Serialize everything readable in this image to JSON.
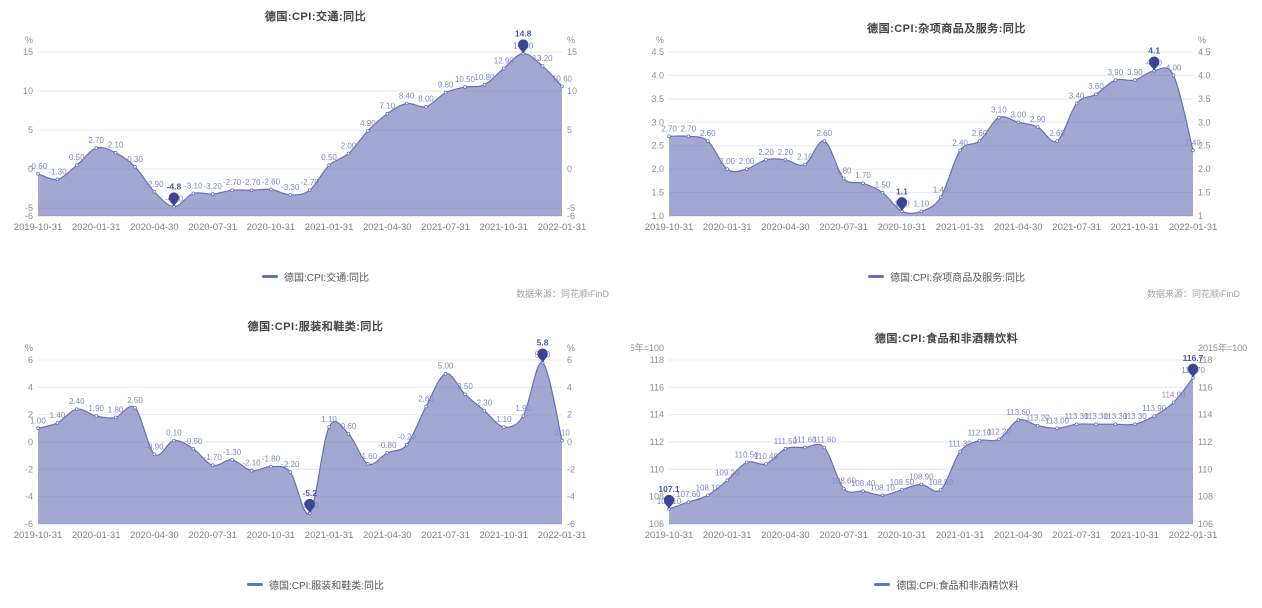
{
  "page": {
    "source_note": "数据来源：同花顺iFinD",
    "background": "#ffffff"
  },
  "colors": {
    "line": "#6672b8",
    "fill": "rgba(105,114,182,0.62)",
    "label": "#7e88c7",
    "pin": "#3b4596",
    "axis_text": "#8f8f8f",
    "grid": "#e7e7e7"
  },
  "chart_data": [
    {
      "type": "area",
      "title": "德国:CPI:交通:同比",
      "legend": "德国:CPI:交通:同比",
      "unit": "%",
      "ylim": [
        -6,
        15
      ],
      "ytick_values": [
        15,
        10,
        5,
        0,
        -5,
        -6
      ],
      "ytick_labels_left": [
        "15",
        "10",
        "5",
        "0",
        "-5",
        "-6"
      ],
      "ytick_labels_right": [
        "15",
        "10",
        "5",
        "0",
        "-5",
        "-6"
      ],
      "x_tick_labels": [
        "2019-10-31",
        "2020-01-31",
        "2020-04-30",
        "2020-07-31",
        "2020-10-31",
        "2021-01-31",
        "2021-04-30",
        "2021-07-31",
        "2021-10-31",
        "2022-01-31"
      ],
      "x_tick_indices": [
        0,
        3,
        6,
        9,
        12,
        15,
        18,
        21,
        24,
        27
      ],
      "values": [
        -0.6,
        -1.3,
        0.5,
        2.7,
        2.1,
        0.3,
        -2.9,
        -4.8,
        -3.1,
        -3.2,
        -2.7,
        -2.7,
        -2.6,
        -3.3,
        -2.7,
        0.5,
        2.0,
        4.9,
        7.1,
        8.4,
        8.0,
        9.8,
        10.5,
        10.8,
        12.9,
        14.8,
        13.2,
        10.6
      ],
      "label_decimals": 2,
      "min_point": {
        "index": 7,
        "label": "-4.8"
      },
      "max_point": {
        "index": 25,
        "label": "14.8"
      },
      "grid_on": true,
      "legend_position": "bottom"
    },
    {
      "type": "area",
      "title": "德国:CPI:杂项商品及服务:同比",
      "legend": "德国:CPI:杂项商品及服务:同比",
      "unit": "%",
      "ylim": [
        1,
        4.5
      ],
      "ytick_values": [
        4.5,
        4,
        3.5,
        3,
        2.5,
        2,
        1.5,
        1
      ],
      "ytick_labels_left": [
        "4.5",
        "4.0",
        "3.5",
        "3.0",
        "2.5",
        "2.0",
        "1.5",
        "1.0"
      ],
      "ytick_labels_right": [
        "4.5",
        "4.0",
        "3.5",
        "3.0",
        "2.5",
        "2.0",
        "1.5",
        "1"
      ],
      "x_tick_labels": [
        "2019-10-31",
        "2020-01-31",
        "2020-04-30",
        "2020-07-31",
        "2020-10-31",
        "2021-01-31",
        "2021-04-30",
        "2021-07-31",
        "2021-10-31",
        "2022-01-31"
      ],
      "x_tick_indices": [
        0,
        3,
        6,
        9,
        12,
        15,
        18,
        21,
        24,
        27
      ],
      "values": [
        2.7,
        2.7,
        2.6,
        2.0,
        2.0,
        2.2,
        2.2,
        2.1,
        2.6,
        1.8,
        1.7,
        1.5,
        1.1,
        1.1,
        1.4,
        2.4,
        2.6,
        3.1,
        3.0,
        2.9,
        2.6,
        3.4,
        3.6,
        3.9,
        3.9,
        4.1,
        4.0,
        2.4
      ],
      "label_decimals": 2,
      "min_point": {
        "index": 12,
        "label": "1.1"
      },
      "max_point": {
        "index": 25,
        "label": "4.1"
      },
      "grid_on": true,
      "legend_position": "bottom"
    },
    {
      "type": "area",
      "title": "德国:CPI:服装和鞋类:同比",
      "legend": "德国:CPI:服装和鞋类:同比",
      "unit": "%",
      "ylim": [
        -6,
        6
      ],
      "ytick_values": [
        6,
        4,
        2,
        0,
        -2,
        -4,
        -6
      ],
      "ytick_labels_left": [
        "6",
        "4",
        "2",
        "0",
        "-2",
        "-4",
        "-6"
      ],
      "ytick_labels_right": [
        "6",
        "4",
        "2",
        "0",
        "-2",
        "-4",
        "-6"
      ],
      "x_tick_labels": [
        "2019-10-31",
        "2020-01-31",
        "2020-04-30",
        "2020-07-31",
        "2020-10-31",
        "2021-01-31",
        "2021-04-30",
        "2021-07-31",
        "2021-10-31",
        "2022-01-31"
      ],
      "x_tick_indices": [
        0,
        3,
        6,
        9,
        12,
        15,
        18,
        21,
        24,
        27
      ],
      "values": [
        1.0,
        1.4,
        2.4,
        1.9,
        1.8,
        2.5,
        -0.9,
        0.1,
        -0.5,
        -1.7,
        -1.3,
        -2.1,
        -1.8,
        -2.2,
        -5.2,
        1.1,
        0.6,
        -1.6,
        -0.8,
        -0.2,
        2.6,
        5.0,
        3.5,
        2.3,
        1.1,
        1.9,
        5.8,
        0.1
      ],
      "label_decimals": 2,
      "min_point": {
        "index": 14,
        "label": "-5.2"
      },
      "max_point": {
        "index": 26,
        "label": "5.8"
      },
      "grid_on": true,
      "legend_position": "bottom"
    },
    {
      "type": "area",
      "title": "德国:CPI:食品和非酒精饮料",
      "legend": "德国:CPI:食品和非酒精饮料",
      "unit": "2015年=100",
      "ylim": [
        106,
        118
      ],
      "ytick_values": [
        118,
        116,
        114,
        112,
        110,
        108,
        106
      ],
      "ytick_labels_left": [
        "118",
        "116",
        "114",
        "112",
        "110",
        "108",
        "106"
      ],
      "ytick_labels_right": [
        "118",
        "116",
        "114",
        "112",
        "110",
        "108",
        "106"
      ],
      "x_tick_labels": [
        "2019-10-31",
        "2020-01-31",
        "2020-04-30",
        "2020-07-31",
        "2020-10-31",
        "2021-01-31",
        "2021-04-30",
        "2021-07-31",
        "2021-10-31",
        "2022-01-31"
      ],
      "x_tick_indices": [
        0,
        3,
        6,
        9,
        12,
        15,
        18,
        21,
        24,
        27
      ],
      "values": [
        107.1,
        107.6,
        108.1,
        109.2,
        110.5,
        110.4,
        111.5,
        111.6,
        111.6,
        108.6,
        108.4,
        108.1,
        108.5,
        108.9,
        108.5,
        111.3,
        112.1,
        112.2,
        113.6,
        113.2,
        113.0,
        113.3,
        113.3,
        113.3,
        113.3,
        113.9,
        114.9,
        116.7
      ],
      "label_decimals": 2,
      "min_point": {
        "index": 0,
        "label": "107.1"
      },
      "max_point": {
        "index": 27,
        "label": "116.7"
      },
      "grid_on": true,
      "legend_position": "bottom"
    }
  ]
}
